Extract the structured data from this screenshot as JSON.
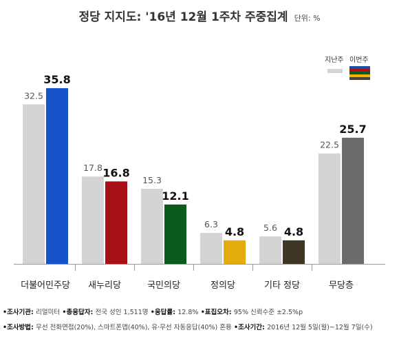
{
  "header": {
    "title": "정당 지지도: '16년 12월 1주차 주중집계",
    "unit": "단위: %"
  },
  "legend": {
    "prev_label": "지난주",
    "curr_label": "이번주",
    "stripe_colors": [
      "#1b4fa0",
      "#b40d1a",
      "#0b5a24",
      "#f0b400",
      "#4a4036"
    ]
  },
  "colors": {
    "prev_bar": "#d4d4d4",
    "axis": "#9a9a9a"
  },
  "chart_data": {
    "type": "bar",
    "categories": [
      "더불어민주당",
      "새누리당",
      "국민의당",
      "정의당",
      "기타 정당",
      "무당층"
    ],
    "series": [
      {
        "name": "지난주",
        "values": [
          32.5,
          17.8,
          15.3,
          6.3,
          5.6,
          22.5
        ]
      },
      {
        "name": "이번주",
        "values": [
          35.8,
          16.8,
          12.1,
          4.8,
          4.8,
          25.7
        ]
      }
    ],
    "current_colors": [
      "#1553c9",
      "#a80e16",
      "#0d5a1e",
      "#e5ac0d",
      "#3e3726",
      "#6b6b6b"
    ],
    "ylim": [
      0,
      40
    ],
    "grid": false,
    "legend_position": "top-right"
  },
  "footer": {
    "line1": [
      {
        "label": "•조사기관: ",
        "value": "리얼미터"
      },
      {
        "label": " •총응답자: ",
        "value": "전국 성인 1,511명"
      },
      {
        "label": " •응답률: ",
        "value": "12.8%"
      },
      {
        "label": " •표집오차: ",
        "value": "95% 신뢰수준 ±2.5%p"
      }
    ],
    "line2": [
      {
        "label": "•조사방법: ",
        "value": "무선 전화면접(20%), 스마트폰앱(40%), 유·무선 자동응답(40%) 혼용"
      },
      {
        "label": " •조사기간: ",
        "value": "2016년 12월 5일(월)~12월 7일(수)"
      }
    ]
  }
}
